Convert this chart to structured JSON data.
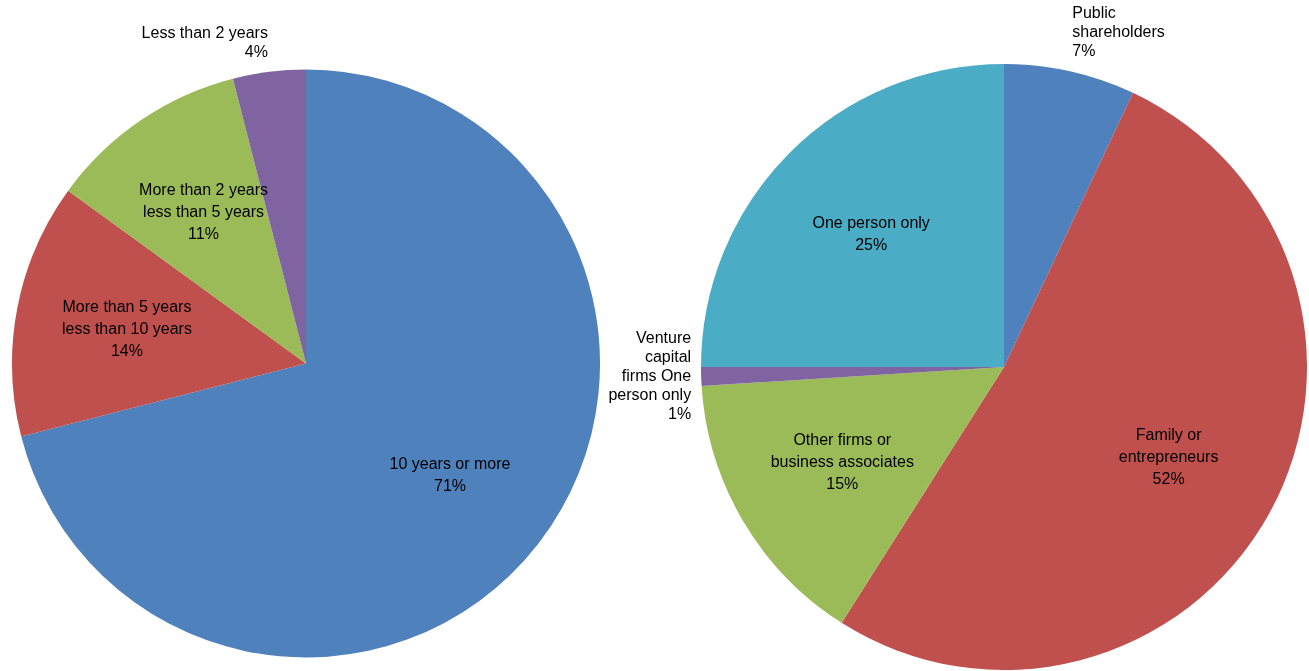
{
  "chart_data": [
    {
      "type": "pie",
      "categories": [
        "10 years or more",
        "More than 5 years less than 10 years",
        "More than 2 years less than 5 years",
        "Less than 2 years"
      ],
      "values": [
        71,
        14,
        11,
        4
      ],
      "value_labels": [
        "71%",
        "14%",
        "11%",
        "4%"
      ],
      "colors": [
        "#4f81bd",
        "#c0504d",
        "#9bbb59",
        "#8064a2"
      ]
    },
    {
      "type": "pie",
      "categories": [
        "Public shareholders",
        "Family or entrepreneurs",
        "Other firms or business associates",
        "Venture capital firms One person only",
        "One person only"
      ],
      "values": [
        7,
        52,
        15,
        1,
        25
      ],
      "value_labels": [
        "7%",
        "52%",
        "15%",
        "1%",
        "25%"
      ],
      "colors": [
        "#4f81bd",
        "#c0504d",
        "#9bbb59",
        "#8064a2",
        "#4bacc6"
      ]
    }
  ]
}
